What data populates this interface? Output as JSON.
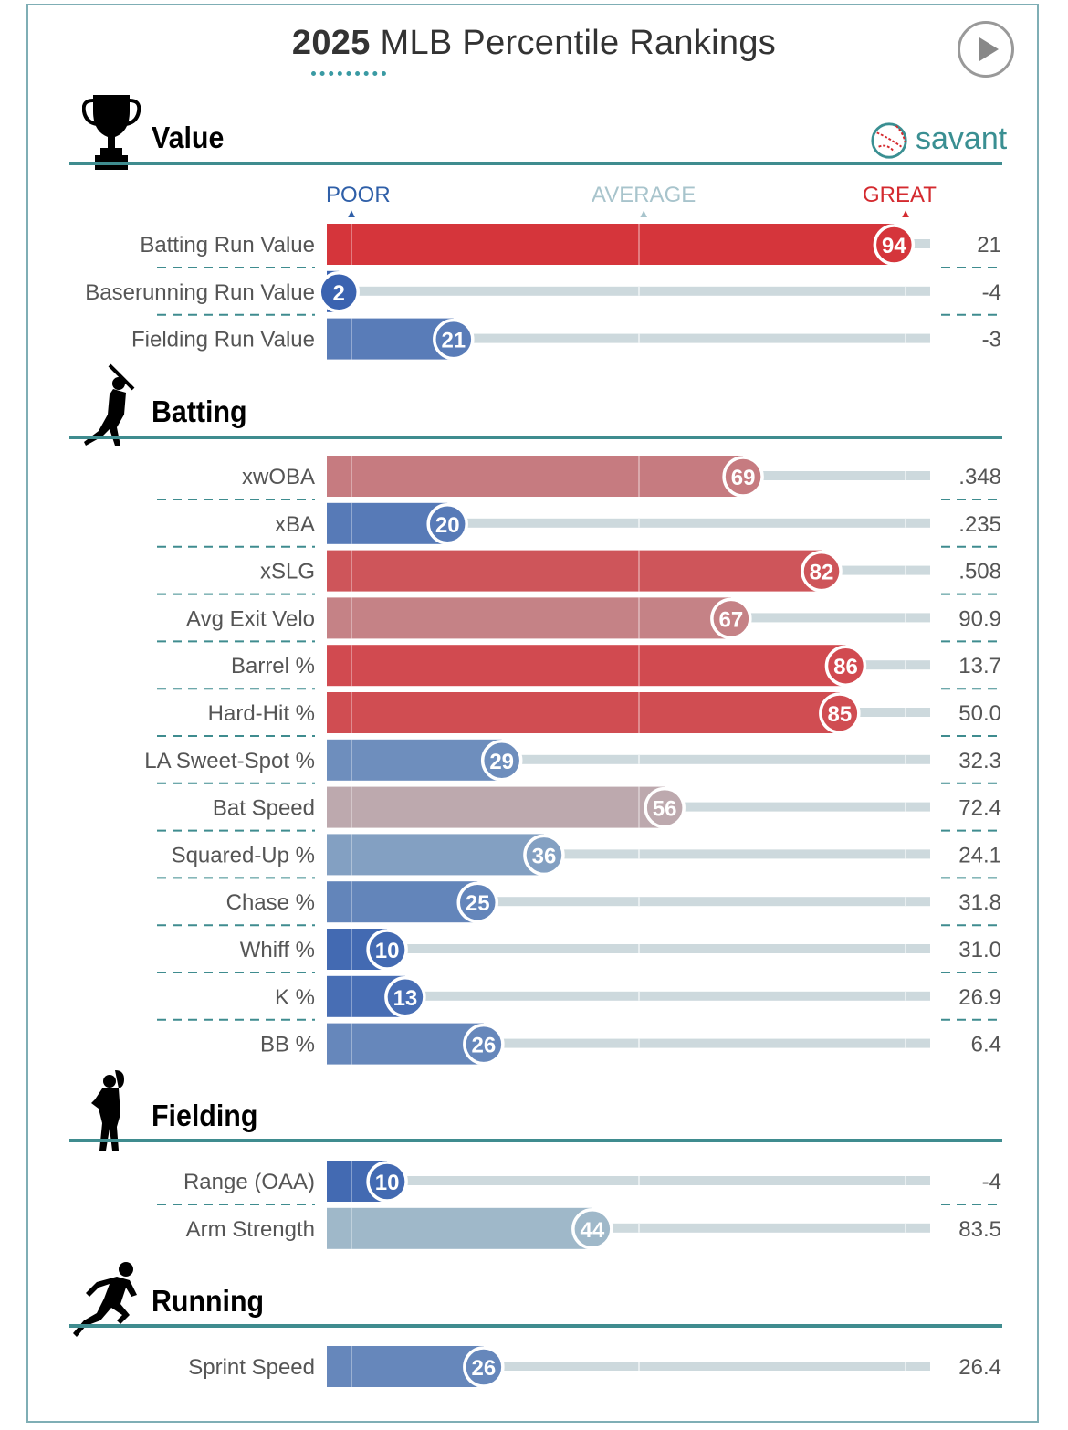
{
  "header": {
    "title_year": "2025",
    "title_rest": " MLB Percentile Rankings",
    "play_icon": "play-icon",
    "brand": "savant",
    "brand_icon": "baseball-icon"
  },
  "scale": {
    "poor": "POOR",
    "average": "AVERAGE",
    "great": "GREAT",
    "poor_color": "#2f5fa8",
    "average_color": "#a8c4cc",
    "great_color": "#d42a2f"
  },
  "colors": {
    "track": "#cdd9dd",
    "section_line": "#3f8c8f",
    "frame": "#7faeb5"
  },
  "chart_data": {
    "type": "bar",
    "orientation": "horizontal",
    "xlim": [
      0,
      100
    ],
    "sections": [
      {
        "title": "Value",
        "icon": "trophy-icon",
        "metrics": [
          {
            "label": "Batting Run Value",
            "percentile": 94,
            "value": "21"
          },
          {
            "label": "Baserunning Run Value",
            "percentile": 2,
            "value": "-4"
          },
          {
            "label": "Fielding Run Value",
            "percentile": 21,
            "value": "-3"
          }
        ]
      },
      {
        "title": "Batting",
        "icon": "batter-icon",
        "metrics": [
          {
            "label": "xwOBA",
            "percentile": 69,
            "value": ".348"
          },
          {
            "label": "xBA",
            "percentile": 20,
            "value": ".235"
          },
          {
            "label": "xSLG",
            "percentile": 82,
            "value": ".508"
          },
          {
            "label": "Avg Exit Velo",
            "percentile": 67,
            "value": "90.9"
          },
          {
            "label": "Barrel %",
            "percentile": 86,
            "value": "13.7"
          },
          {
            "label": "Hard-Hit %",
            "percentile": 85,
            "value": "50.0"
          },
          {
            "label": "LA Sweet-Spot %",
            "percentile": 29,
            "value": "32.3"
          },
          {
            "label": "Bat Speed",
            "percentile": 56,
            "value": "72.4"
          },
          {
            "label": "Squared-Up %",
            "percentile": 36,
            "value": "24.1"
          },
          {
            "label": "Chase %",
            "percentile": 25,
            "value": "31.8"
          },
          {
            "label": "Whiff %",
            "percentile": 10,
            "value": "31.0"
          },
          {
            "label": "K %",
            "percentile": 13,
            "value": "26.9"
          },
          {
            "label": "BB %",
            "percentile": 26,
            "value": "6.4"
          }
        ]
      },
      {
        "title": "Fielding",
        "icon": "fielder-icon",
        "metrics": [
          {
            "label": "Range (OAA)",
            "percentile": 10,
            "value": "-4"
          },
          {
            "label": "Arm Strength",
            "percentile": 44,
            "value": "83.5"
          }
        ]
      },
      {
        "title": "Running",
        "icon": "runner-icon",
        "metrics": [
          {
            "label": "Sprint Speed",
            "percentile": 26,
            "value": "26.4"
          }
        ]
      }
    ]
  }
}
